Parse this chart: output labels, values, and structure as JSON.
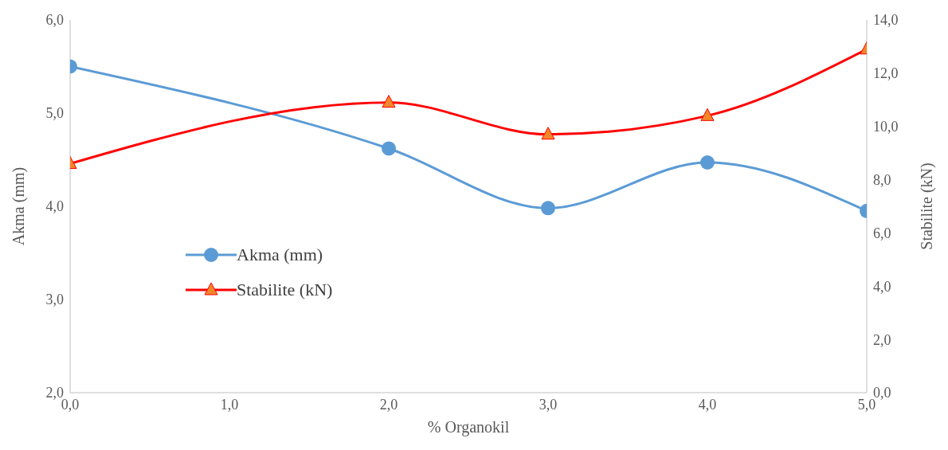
{
  "chart_data": {
    "type": "line",
    "xlabel": "% Organokil",
    "ylabel": "Akma (mm)",
    "y2label": "Stabilite (kN)",
    "x": [
      0,
      2,
      3,
      4,
      5
    ],
    "xlim": [
      0,
      5
    ],
    "xticks": [
      {
        "value": 0,
        "label": "0,0"
      },
      {
        "value": 1,
        "label": "1,0"
      },
      {
        "value": 2,
        "label": "2,0"
      },
      {
        "value": 3,
        "label": "3,0"
      },
      {
        "value": 4,
        "label": "4,0"
      },
      {
        "value": 5,
        "label": "5,0"
      }
    ],
    "ylim": [
      2,
      6
    ],
    "yticks": [
      {
        "value": 2,
        "label": "2,0"
      },
      {
        "value": 3,
        "label": "3,0"
      },
      {
        "value": 4,
        "label": "4,0"
      },
      {
        "value": 5,
        "label": "5,0"
      },
      {
        "value": 6,
        "label": "6,0"
      }
    ],
    "y2lim": [
      0,
      14
    ],
    "y2ticks": [
      {
        "value": 0,
        "label": "0,0"
      },
      {
        "value": 2,
        "label": "2,0"
      },
      {
        "value": 4,
        "label": "4,0"
      },
      {
        "value": 6,
        "label": "6,0"
      },
      {
        "value": 8,
        "label": "8,0"
      },
      {
        "value": 10,
        "label": "10,0"
      },
      {
        "value": 12,
        "label": "12,0"
      },
      {
        "value": 14,
        "label": "14,0"
      }
    ],
    "series": [
      {
        "name": "Akma (mm)",
        "color": "#5b9bd5",
        "marker": "circle",
        "values": [
          5.5,
          4.62,
          3.98,
          4.47,
          3.95
        ]
      },
      {
        "name": "Stabilite (kN)",
        "color": "#ff0000",
        "marker": "triangle",
        "axis": "y2",
        "values": [
          8.6,
          10.9,
          9.7,
          10.4,
          12.9
        ]
      }
    ],
    "legend": "left"
  }
}
